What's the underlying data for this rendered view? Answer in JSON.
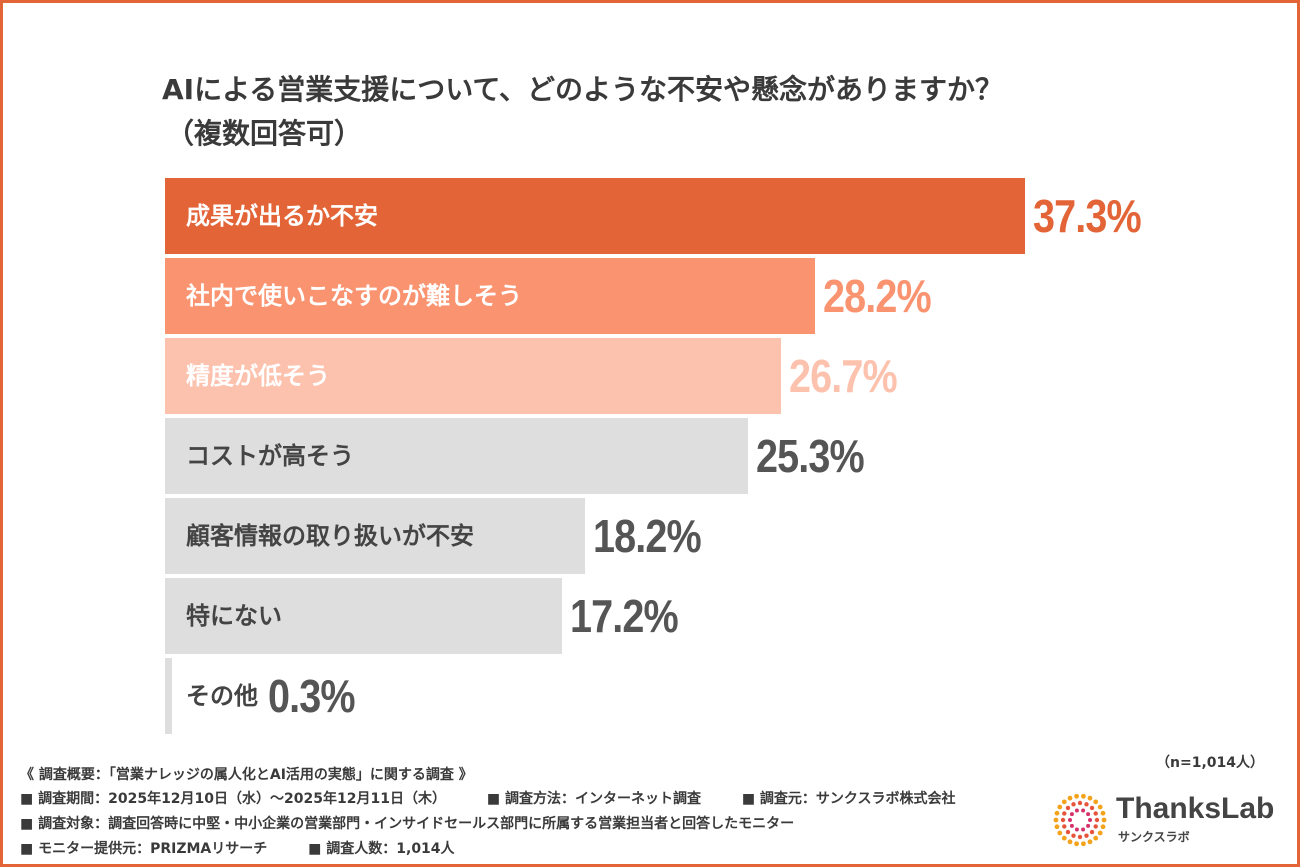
{
  "chart_data": {
    "type": "bar",
    "orientation": "horizontal",
    "title": "AIによる営業支援について、どのような不安や懸念がありますか？",
    "subtitle": "（複数回答可）",
    "categories": [
      "成果が出るか不安",
      "社内で使いこなすのが難しそう",
      "精度が低そう",
      "コストが高そう",
      "顧客情報の取り扱いが不安",
      "特にない",
      "その他"
    ],
    "values": [
      37.3,
      28.2,
      26.7,
      25.3,
      18.2,
      17.2,
      0.3
    ],
    "value_labels": [
      "37.3%",
      "28.2%",
      "26.7%",
      "25.3%",
      "18.2%",
      "17.2%",
      "0.3%"
    ],
    "colors": [
      "#E36437",
      "#FA9370",
      "#FDC2AE",
      "#DEDEDE",
      "#DEDEDE",
      "#DEDEDE",
      "#DEDEDE"
    ],
    "label_colors": [
      "#ffffff",
      "#ffffff",
      "#ffffff",
      "#444444",
      "#444444",
      "#444444",
      "#444444"
    ],
    "value_colors": [
      "#E36437",
      "#FA9370",
      "#FDC2AE",
      "#555555",
      "#555555",
      "#555555",
      "#555555"
    ],
    "xlim": [
      0,
      37.3
    ],
    "xlabel": "",
    "ylabel": "",
    "grid": false
  },
  "footnotes": {
    "survey_title": "《 調査概要：「営業ナレッジの属人化とAI活用の実態」に関する調査 》",
    "period": "■ 調査期間：2025年12月10日（水）〜2025年12月11日（木）",
    "method": "■ 調査方法：インターネット調査",
    "organizer": "■ 調査元：サンクスラボ株式会社",
    "target": "■ 調査対象：調査回答時に中堅・中小企業の営業部門・インサイドセールス部門に所属する営業担当者と回答したモニター",
    "provider": "■ モニター提供元：PRIZMAリサーチ",
    "respondents": "■ 調査人数：1,014人",
    "n_note": "（n=1,014人）"
  },
  "brand": {
    "name": "ThanksLab",
    "sub": "サンクスラボ",
    "accent": "#E36437"
  }
}
